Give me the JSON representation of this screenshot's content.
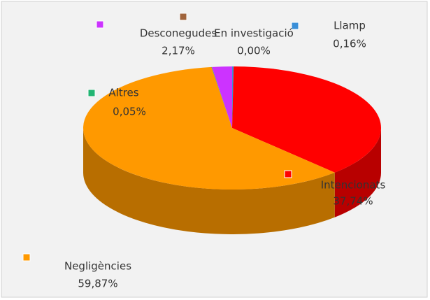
{
  "chart_data": {
    "type": "pie3d",
    "categories": [
      "Llamp",
      "Intencionats",
      "Negligències",
      "Altres",
      "Desconegudes",
      "En investigació"
    ],
    "values": [
      0.16,
      37.74,
      59.87,
      0.05,
      2.17,
      0.0
    ],
    "value_labels": [
      "0,16%",
      "37,74%",
      "59,87%",
      "0,05%",
      "2,17%",
      "0,00%"
    ],
    "colors": [
      "#3a8fd8",
      "#ff0000",
      "#ff9900",
      "#22b573",
      "#cc33ff",
      "#a0643c"
    ],
    "legend": "beside labels"
  }
}
